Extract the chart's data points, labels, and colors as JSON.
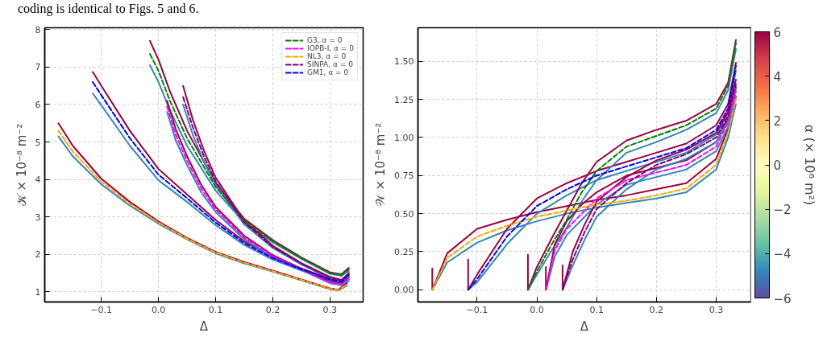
{
  "chart_data": [
    {
      "type": "line",
      "annotations": [
        "coding is identical to Figs. 5 and 6."
      ],
      "xlabel": "Δ",
      "ylabel": "𝒦 × 10⁻⁸ m⁻²",
      "xlim": [
        -0.199,
        0.358
      ],
      "ylim": [
        0.73,
        8.05
      ],
      "xticks": [
        -0.1,
        {
          "value": 0,
          "label": "0.0"
        },
        0.1,
        0.2,
        0.3
      ],
      "yticks": [
        1,
        2,
        3,
        4,
        5,
        6,
        7,
        8
      ],
      "grid": true,
      "legend": "top right",
      "line_style": "solid",
      "series": [
        {
          "color": "#3288bd",
          "x": [
            -0.175,
            -0.15,
            -0.1,
            -0.05,
            0.0,
            0.05,
            0.1,
            0.15,
            0.2,
            0.25,
            0.3,
            0.315,
            0.33
          ],
          "values": [
            5.15,
            4.62,
            3.87,
            3.3,
            2.82,
            2.4,
            2.03,
            1.76,
            1.54,
            1.31,
            1.07,
            1.04,
            1.17
          ]
        },
        {
          "color": "#9e0142",
          "x": [
            -0.175,
            -0.15,
            -0.1,
            -0.05,
            0.0,
            0.05,
            0.1,
            0.15,
            0.2,
            0.25,
            0.3,
            0.315,
            0.33
          ],
          "values": [
            5.5,
            4.9,
            4.02,
            3.4,
            2.88,
            2.44,
            2.07,
            1.8,
            1.57,
            1.33,
            1.09,
            1.06,
            1.24
          ]
        },
        {
          "color": "#3288bd",
          "x": [
            -0.115,
            -0.1,
            -0.05,
            0.0,
            0.05,
            0.1,
            0.15,
            0.2,
            0.25,
            0.3,
            0.32,
            0.333
          ],
          "values": [
            6.3,
            5.98,
            4.9,
            3.98,
            3.4,
            2.78,
            2.25,
            1.86,
            1.57,
            1.31,
            1.25,
            1.4
          ]
        },
        {
          "color": "#9e0142",
          "x": [
            -0.115,
            -0.1,
            -0.05,
            0.0,
            0.05,
            0.1,
            0.15,
            0.2,
            0.25,
            0.3,
            0.32,
            0.333
          ],
          "values": [
            6.87,
            6.5,
            5.3,
            4.28,
            3.6,
            2.92,
            2.35,
            1.94,
            1.63,
            1.35,
            1.29,
            1.5
          ]
        },
        {
          "color": "#3288bd",
          "x": [
            -0.015,
            0.0,
            0.02,
            0.05,
            0.1,
            0.15,
            0.2,
            0.25,
            0.3,
            0.32,
            0.333
          ],
          "values": [
            7.05,
            6.6,
            5.85,
            4.9,
            3.7,
            2.85,
            2.32,
            1.88,
            1.48,
            1.43,
            1.56
          ]
        },
        {
          "color": "#9e0142",
          "x": [
            -0.015,
            0.0,
            0.02,
            0.05,
            0.1,
            0.15,
            0.2,
            0.25,
            0.3,
            0.32,
            0.333
          ],
          "values": [
            7.7,
            7.2,
            6.35,
            5.3,
            3.9,
            2.95,
            2.38,
            1.92,
            1.52,
            1.47,
            1.64
          ]
        },
        {
          "color": "#3288bd",
          "x": [
            0.015,
            0.03,
            0.05,
            0.075,
            0.1,
            0.15,
            0.2,
            0.25,
            0.3,
            0.32,
            0.333
          ],
          "values": [
            5.8,
            5.05,
            4.38,
            3.65,
            3.13,
            2.4,
            1.92,
            1.58,
            1.23,
            1.18,
            1.3
          ]
        },
        {
          "color": "#9e0142",
          "x": [
            0.015,
            0.03,
            0.05,
            0.075,
            0.1,
            0.15,
            0.2,
            0.25,
            0.3,
            0.32,
            0.333
          ],
          "values": [
            6.1,
            5.35,
            4.62,
            3.85,
            3.27,
            2.5,
            1.98,
            1.62,
            1.27,
            1.22,
            1.4
          ]
        },
        {
          "color": "#3288bd",
          "x": [
            0.043,
            0.06,
            0.08,
            0.1,
            0.15,
            0.2,
            0.25,
            0.3,
            0.32,
            0.333
          ],
          "values": [
            6.0,
            5.2,
            4.45,
            3.85,
            2.8,
            2.17,
            1.73,
            1.36,
            1.28,
            1.4
          ]
        },
        {
          "color": "#9e0142",
          "x": [
            0.043,
            0.06,
            0.08,
            0.1,
            0.15,
            0.2,
            0.25,
            0.3,
            0.32,
            0.333
          ],
          "values": [
            6.5,
            5.6,
            4.75,
            4.05,
            2.9,
            2.23,
            1.77,
            1.4,
            1.32,
            1.5
          ]
        },
        {
          "name": "G3, α = 0",
          "color": "#008000",
          "line_style": "dashed",
          "x": [
            -0.015,
            0.0,
            0.02,
            0.05,
            0.1,
            0.15,
            0.2,
            0.25,
            0.3,
            0.32,
            0.333
          ],
          "values": [
            7.35,
            6.9,
            6.1,
            5.1,
            3.8,
            2.9,
            2.35,
            1.9,
            1.5,
            1.45,
            1.6
          ]
        },
        {
          "name": "IOPB-I, α = 0",
          "color": "#ff00ff",
          "line_style": "dashed",
          "x": [
            0.015,
            0.03,
            0.05,
            0.075,
            0.1,
            0.15,
            0.2,
            0.25,
            0.3,
            0.32,
            0.333
          ],
          "values": [
            5.95,
            5.2,
            4.5,
            3.75,
            3.2,
            2.45,
            1.95,
            1.6,
            1.25,
            1.2,
            1.35
          ]
        },
        {
          "name": "NL3, α = 0",
          "color": "#ffa500",
          "line_style": "dashed",
          "x": [
            -0.175,
            -0.15,
            -0.1,
            -0.05,
            0.0,
            0.05,
            0.1,
            0.15,
            0.2,
            0.25,
            0.3,
            0.315,
            0.33
          ],
          "values": [
            5.3,
            4.75,
            3.94,
            3.35,
            2.85,
            2.42,
            2.05,
            1.78,
            1.55,
            1.32,
            1.08,
            1.05,
            1.2
          ]
        },
        {
          "name": "SINPA, α = 0",
          "color": "#800080",
          "line_style": "dashed",
          "x": [
            0.043,
            0.06,
            0.08,
            0.1,
            0.15,
            0.2,
            0.25,
            0.3,
            0.32,
            0.333
          ],
          "values": [
            6.2,
            5.4,
            4.6,
            3.95,
            2.85,
            2.2,
            1.75,
            1.38,
            1.3,
            1.45
          ]
        },
        {
          "name": "GM1, α = 0",
          "color": "#0000ff",
          "line_style": "dashed",
          "x": [
            -0.115,
            -0.1,
            -0.05,
            0.0,
            0.05,
            0.1,
            0.15,
            0.2,
            0.25,
            0.3,
            0.32,
            0.333
          ],
          "values": [
            6.6,
            6.25,
            5.1,
            4.13,
            3.5,
            2.85,
            2.3,
            1.9,
            1.6,
            1.33,
            1.27,
            1.45
          ]
        }
      ]
    },
    {
      "type": "line",
      "xlabel": "Δ",
      "ylabel": "𝒲 × 10⁻⁸ m⁻²",
      "clabel": "α (× 10⁶ m²)",
      "clim": [
        -6,
        6
      ],
      "cticks": [
        -6,
        -4,
        -2,
        0,
        2,
        4,
        6
      ],
      "xlim": [
        -0.199,
        0.358
      ],
      "ylim": [
        -0.08,
        1.72
      ],
      "xticks": [
        -0.1,
        {
          "value": 0,
          "label": "0.0"
        },
        0.1,
        0.2,
        0.3
      ],
      "yticks": [
        {
          "value": 0,
          "label": "0.00"
        },
        0.25,
        {
          "value": 0.5,
          "label": "0.50"
        },
        0.75,
        {
          "value": 1,
          "label": "1.00"
        },
        1.25,
        {
          "value": 1.5,
          "label": "1.50"
        }
      ],
      "grid": true,
      "line_style": "solid",
      "series": [
        {
          "color": "#3288bd",
          "x": [
            -0.175,
            -0.15,
            -0.1,
            -0.05,
            0.0,
            0.05,
            0.1,
            0.15,
            0.2,
            0.25,
            0.3,
            0.32,
            0.333
          ],
          "values": [
            0,
            0.18,
            0.31,
            0.39,
            0.45,
            0.5,
            0.54,
            0.57,
            0.6,
            0.64,
            0.79,
            1.0,
            1.22
          ]
        },
        {
          "color": "#9e0142",
          "x": [
            -0.175,
            -0.175,
            -0.15,
            -0.1,
            -0.05,
            0.0,
            0.05,
            0.1,
            0.15,
            0.2,
            0.25,
            0.3,
            0.32,
            0.333
          ],
          "values": [
            0.14,
            0,
            0.24,
            0.4,
            0.46,
            0.51,
            0.55,
            0.59,
            0.62,
            0.66,
            0.7,
            0.86,
            1.06,
            1.27
          ]
        },
        {
          "color": "#3288bd",
          "x": [
            -0.115,
            -0.1,
            -0.05,
            0.0,
            0.05,
            0.1,
            0.15,
            0.2,
            0.25,
            0.3,
            0.32,
            0.333
          ],
          "values": [
            0,
            0.05,
            0.3,
            0.5,
            0.62,
            0.72,
            0.78,
            0.84,
            0.9,
            1.02,
            1.16,
            1.44
          ]
        },
        {
          "color": "#9e0142",
          "x": [
            -0.115,
            -0.115,
            -0.1,
            -0.05,
            0.0,
            0.05,
            0.1,
            0.15,
            0.2,
            0.25,
            0.3,
            0.32,
            0.333
          ],
          "values": [
            0.2,
            0,
            0.1,
            0.4,
            0.6,
            0.7,
            0.78,
            0.84,
            0.9,
            0.96,
            1.08,
            1.22,
            1.49
          ]
        },
        {
          "color": "#3288bd",
          "x": [
            -0.015,
            0.0,
            0.025,
            0.05,
            0.075,
            0.1,
            0.15,
            0.2,
            0.25,
            0.3,
            0.32,
            0.333
          ],
          "values": [
            0,
            0.1,
            0.26,
            0.41,
            0.58,
            0.72,
            0.9,
            0.97,
            1.05,
            1.16,
            1.31,
            1.58
          ]
        },
        {
          "color": "#9e0142",
          "x": [
            -0.015,
            -0.015,
            0.0,
            0.025,
            0.05,
            0.075,
            0.1,
            0.15,
            0.2,
            0.25,
            0.3,
            0.32,
            0.333
          ],
          "values": [
            0.23,
            0,
            0.15,
            0.34,
            0.52,
            0.7,
            0.84,
            0.98,
            1.05,
            1.11,
            1.22,
            1.36,
            1.64
          ]
        },
        {
          "color": "#3288bd",
          "x": [
            0.015,
            0.03,
            0.05,
            0.075,
            0.1,
            0.15,
            0.2,
            0.25,
            0.3,
            0.32,
            0.333
          ],
          "values": [
            0,
            0.22,
            0.36,
            0.46,
            0.56,
            0.69,
            0.74,
            0.79,
            0.91,
            1.07,
            1.27
          ]
        },
        {
          "color": "#9e0142",
          "x": [
            0.015,
            0.015,
            0.03,
            0.05,
            0.075,
            0.1,
            0.15,
            0.2,
            0.25,
            0.3,
            0.32,
            0.333
          ],
          "values": [
            0.15,
            0,
            0.3,
            0.45,
            0.56,
            0.64,
            0.75,
            0.8,
            0.85,
            0.97,
            1.13,
            1.33
          ]
        },
        {
          "color": "#3288bd",
          "x": [
            0.043,
            0.06,
            0.08,
            0.1,
            0.15,
            0.2,
            0.25,
            0.3,
            0.32,
            0.333
          ],
          "values": [
            0,
            0.16,
            0.33,
            0.48,
            0.66,
            0.79,
            0.86,
            0.97,
            1.11,
            1.32
          ]
        },
        {
          "color": "#9e0142",
          "x": [
            0.043,
            0.043,
            0.06,
            0.08,
            0.1,
            0.15,
            0.2,
            0.25,
            0.3,
            0.32,
            0.333
          ],
          "values": [
            0.16,
            0,
            0.25,
            0.43,
            0.58,
            0.74,
            0.85,
            0.92,
            1.03,
            1.17,
            1.38
          ]
        },
        {
          "color": "#008000",
          "line_style": "dashed",
          "x": [
            -0.015,
            0.0,
            0.025,
            0.05,
            0.075,
            0.1,
            0.15,
            0.2,
            0.25,
            0.3,
            0.32,
            0.333
          ],
          "values": [
            0,
            0.12,
            0.3,
            0.46,
            0.64,
            0.78,
            0.94,
            1.01,
            1.08,
            1.19,
            1.34,
            1.62
          ]
        },
        {
          "color": "#ff00ff",
          "line_style": "dashed",
          "x": [
            0.015,
            0.03,
            0.05,
            0.075,
            0.1,
            0.15,
            0.2,
            0.25,
            0.3,
            0.32,
            0.333
          ],
          "values": [
            0,
            0.26,
            0.4,
            0.5,
            0.6,
            0.72,
            0.77,
            0.82,
            0.94,
            1.1,
            1.3
          ]
        },
        {
          "color": "#ffa500",
          "line_style": "dashed",
          "x": [
            -0.175,
            -0.15,
            -0.1,
            -0.05,
            0.0,
            0.05,
            0.1,
            0.15,
            0.2,
            0.25,
            0.3,
            0.32,
            0.333
          ],
          "values": [
            0,
            0.21,
            0.35,
            0.42,
            0.48,
            0.52,
            0.56,
            0.585,
            0.62,
            0.665,
            0.82,
            1.03,
            1.25
          ]
        },
        {
          "color": "#800080",
          "line_style": "dashed",
          "x": [
            0.043,
            0.06,
            0.08,
            0.1,
            0.15,
            0.2,
            0.25,
            0.3,
            0.32,
            0.333
          ],
          "values": [
            0,
            0.2,
            0.38,
            0.53,
            0.7,
            0.82,
            0.89,
            1.0,
            1.14,
            1.35
          ]
        },
        {
          "color": "#0000ff",
          "line_style": "dashed",
          "x": [
            -0.115,
            -0.1,
            -0.05,
            0.0,
            0.05,
            0.1,
            0.15,
            0.2,
            0.25,
            0.3,
            0.32,
            0.333
          ],
          "values": [
            0,
            0.07,
            0.35,
            0.55,
            0.66,
            0.75,
            0.81,
            0.87,
            0.93,
            1.05,
            1.19,
            1.47
          ]
        }
      ]
    }
  ]
}
